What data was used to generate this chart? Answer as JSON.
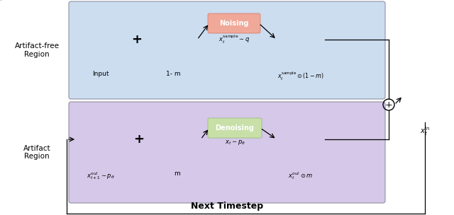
{
  "title": "Next Timestep",
  "bg_color_top": "#ccddf0",
  "bg_color_bottom": "#d5c8e8",
  "noising_box_color": "#f0a898",
  "denoising_box_color": "#c8e0a8",
  "noising_edge_color": "#d07868",
  "denoising_edge_color": "#90b870",
  "label_artifact_free": "Artifact-free\nRegion",
  "label_artifact": "Artifact\nRegion",
  "label_input": "Input",
  "label_1m": "1- m",
  "label_m": "m",
  "label_noising": "Noising",
  "label_denoising": "Denoising",
  "figsize": [
    6.4,
    3.04
  ],
  "dpi": 100,
  "white": "#ffffff",
  "black": "#000000"
}
